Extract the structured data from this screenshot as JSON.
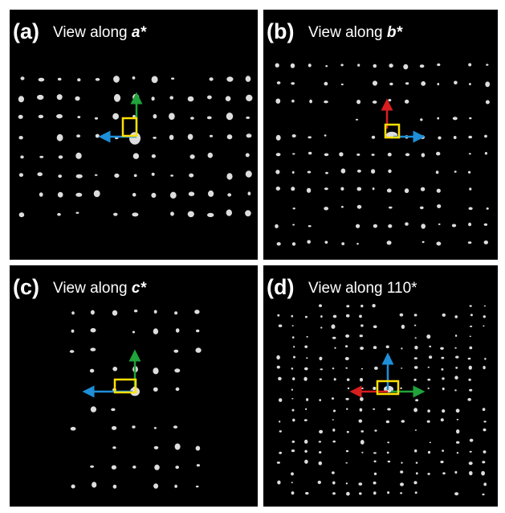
{
  "panels": [
    {
      "label": "(a)",
      "text": "View along",
      "axis": "a*"
    },
    {
      "label": "(b)",
      "text": "View along",
      "axis": "b*"
    },
    {
      "label": "(c)",
      "text": "View along",
      "axis": "c*"
    },
    {
      "label": "(d)",
      "text": "View along 110*",
      "axis": null
    }
  ]
}
